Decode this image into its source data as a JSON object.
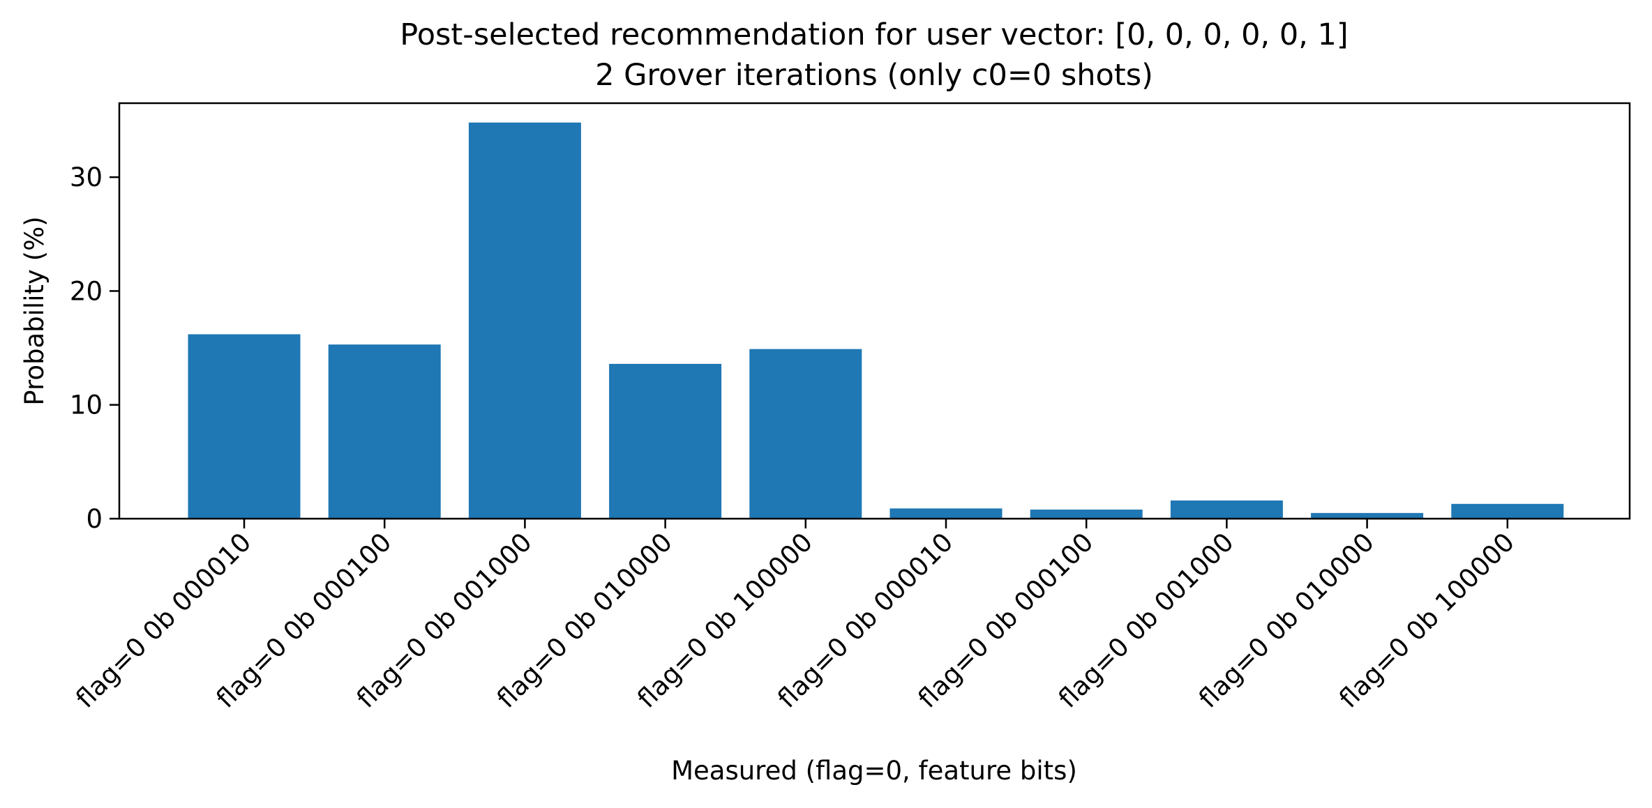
{
  "chart_data": {
    "type": "bar",
    "title": "Post-selected recommendation for user vector: [0, 0, 0, 0, 0, 1]",
    "subtitle": "2 Grover iterations  (only c0=0 shots)",
    "xlabel": "Measured (flag=0, feature bits)",
    "ylabel": "Probability (%)",
    "ylim": [
      0,
      36.5
    ],
    "yticks": [
      0,
      10,
      20,
      30
    ],
    "grid": false,
    "legend": "none",
    "bar_color": "#1f77b4",
    "categories": [
      "flag=0 0b 000010",
      "flag=0 0b 000100",
      "flag=0 0b 001000",
      "flag=0 0b 010000",
      "flag=0 0b 100000",
      "flag=0 0b 000010",
      "flag=0 0b 000100",
      "flag=0 0b 001000",
      "flag=0 0b 010000",
      "flag=0 0b 100000"
    ],
    "values": [
      16.2,
      15.3,
      34.8,
      13.6,
      14.9,
      0.9,
      0.8,
      1.6,
      0.5,
      1.3
    ]
  }
}
